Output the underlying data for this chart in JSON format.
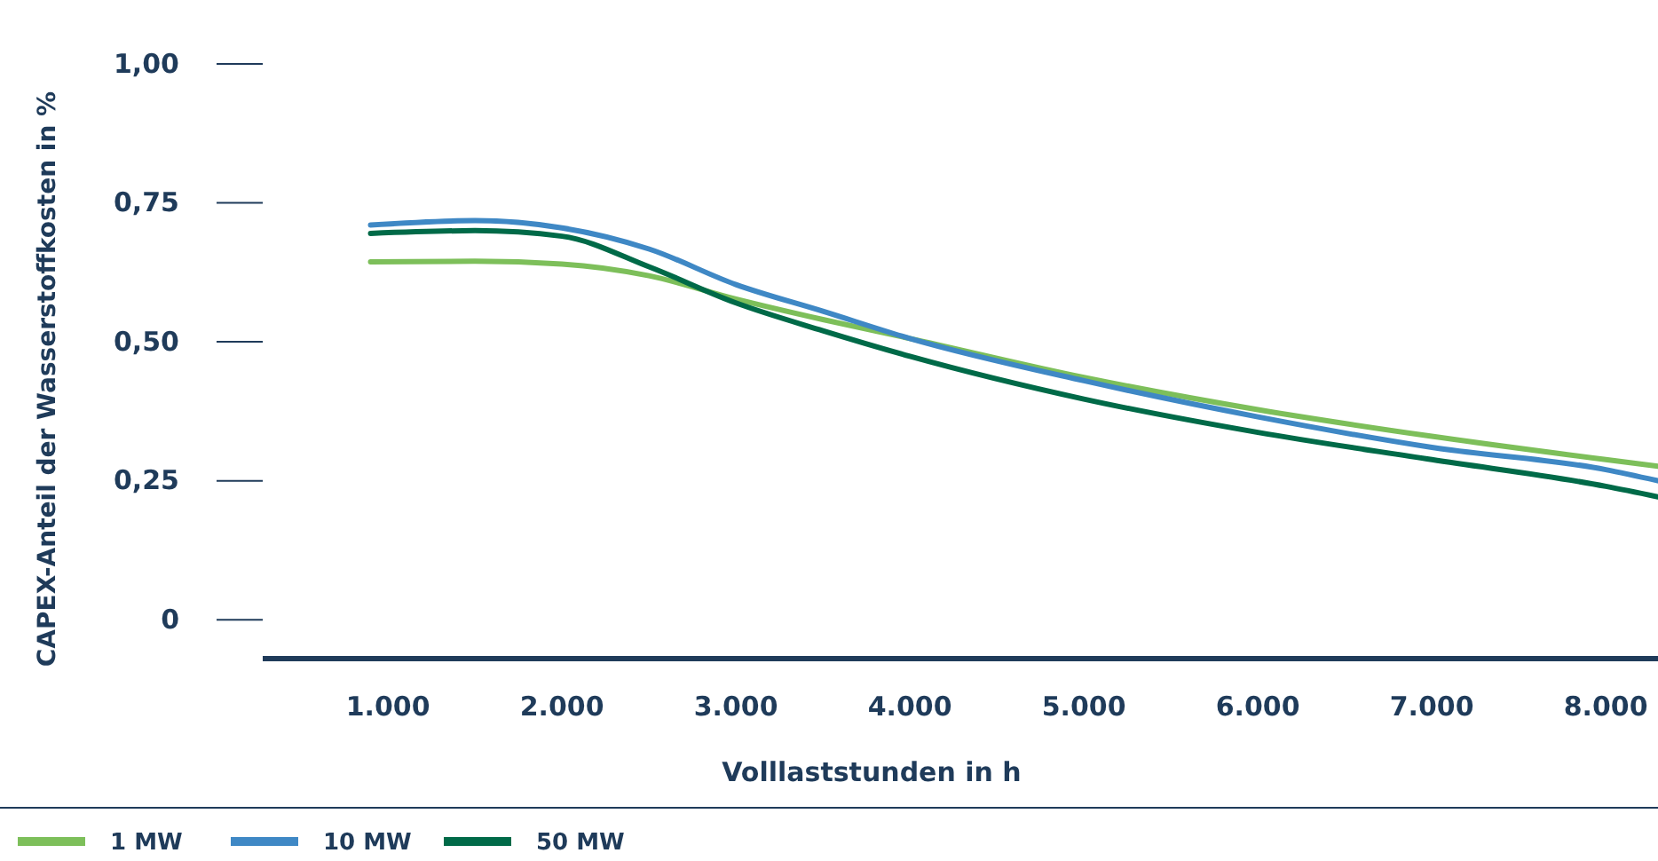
{
  "chart_data": {
    "type": "line",
    "xlabel": "Volllaststunden in h",
    "ylabel": "CAPEX-Anteil der Wasserstoffkosten in %",
    "xlim": [
      280,
      8300
    ],
    "xticks": [
      {
        "value": 1000,
        "label": "1.000"
      },
      {
        "value": 2000,
        "label": "2.000"
      },
      {
        "value": 3000,
        "label": "3.000"
      },
      {
        "value": 4000,
        "label": "4.000"
      },
      {
        "value": 5000,
        "label": "5.000"
      },
      {
        "value": 6000,
        "label": "6.000"
      },
      {
        "value": 7000,
        "label": "7.000"
      },
      {
        "value": 8000,
        "label": "8.000"
      }
    ],
    "ylim": [
      -0.07,
      1
    ],
    "yticks": [
      0,
      {
        "value": 0.25,
        "label": "0,25"
      },
      {
        "value": 0.5,
        "label": "0,50"
      },
      {
        "value": 0.75,
        "label": "0,75"
      },
      {
        "value": 1,
        "label": "1,00"
      }
    ],
    "x": [
      900,
      1500,
      2000,
      2500,
      3000,
      3500,
      4000,
      5000,
      6000,
      7000,
      8000,
      8300
    ],
    "series": [
      {
        "name": "1 MW",
        "color": "#7dbf5a",
        "values": [
          0.644,
          0.645,
          0.64,
          0.619,
          0.577,
          0.54,
          0.506,
          0.436,
          0.378,
          0.33,
          0.288,
          0.276
        ]
      },
      {
        "name": "10 MW",
        "color": "#3f88c5",
        "values": [
          0.71,
          0.718,
          0.705,
          0.667,
          0.603,
          0.555,
          0.506,
          0.43,
          0.365,
          0.31,
          0.27,
          0.25
        ]
      },
      {
        "name": "50 MW",
        "color": "#006a48",
        "values": [
          0.695,
          0.7,
          0.69,
          0.635,
          0.57,
          0.52,
          0.474,
          0.397,
          0.337,
          0.288,
          0.24,
          0.221
        ]
      }
    ],
    "grid": false,
    "legend": "bottom left",
    "marker": "none",
    "line_style": "solid"
  }
}
